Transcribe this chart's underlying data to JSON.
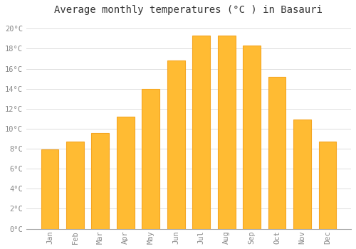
{
  "months": [
    "Jan",
    "Feb",
    "Mar",
    "Apr",
    "May",
    "Jun",
    "Jul",
    "Aug",
    "Sep",
    "Oct",
    "Nov",
    "Dec"
  ],
  "values": [
    7.9,
    8.7,
    9.6,
    11.2,
    14.0,
    16.8,
    19.3,
    19.3,
    18.3,
    15.2,
    10.9,
    8.7
  ],
  "bar_color": "#FFBB33",
  "bar_edge_color": "#F5A623",
  "background_color": "#FFFFFF",
  "grid_color": "#DDDDDD",
  "title": "Average monthly temperatures (°C ) in Basauri",
  "title_fontsize": 10,
  "title_color": "#333333",
  "tick_label_color": "#888888",
  "ylim": [
    0,
    21
  ],
  "ytick_step": 2,
  "xlabel_rotation": 90,
  "figsize": [
    5.0,
    3.5
  ],
  "dpi": 100
}
